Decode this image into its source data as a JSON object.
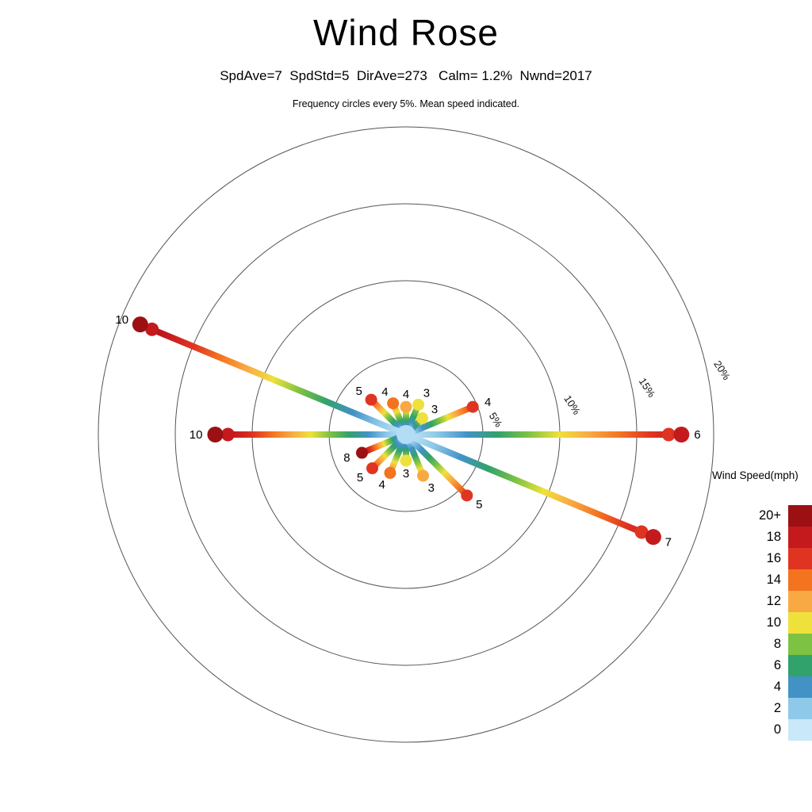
{
  "header": {
    "title": "Wind Rose",
    "subtitle": "SpdAve=7  SpdStd=5  DirAve=273   Calm= 1.2%  Nwnd=2017",
    "caption": "Frequency circles every 5%. Mean speed indicated."
  },
  "legend": {
    "title": "Wind Speed(mph)",
    "entries": [
      {
        "label": "20+",
        "color": "#9c1013"
      },
      {
        "label": "18",
        "color": "#c41a1d"
      },
      {
        "label": "16",
        "color": "#e03422"
      },
      {
        "label": "14",
        "color": "#f4731f"
      },
      {
        "label": "12",
        "color": "#f9a943"
      },
      {
        "label": "10",
        "color": "#efe13b"
      },
      {
        "label": "8",
        "color": "#7dc243"
      },
      {
        "label": "6",
        "color": "#31a26b"
      },
      {
        "label": "4",
        "color": "#4292c6"
      },
      {
        "label": "2",
        "color": "#8ec9e9"
      },
      {
        "label": "0",
        "color": "#c9e8fa"
      }
    ]
  },
  "chart_data": {
    "type": "wind-rose",
    "title": "Wind Rose",
    "stats": {
      "SpdAve": 7,
      "SpdStd": 5,
      "DirAve": 273,
      "Calm_pct": 1.2,
      "Nwnd": 2017
    },
    "speed_unit": "mph",
    "frequency_ring_step_pct": 5,
    "rings": [
      {
        "pct": 5,
        "label": "5%"
      },
      {
        "pct": 10,
        "label": "10%"
      },
      {
        "pct": 15,
        "label": "15%"
      },
      {
        "pct": 20,
        "label": "20%"
      }
    ],
    "calm_color": "#b3dcf5",
    "rays": [
      {
        "dir": "E",
        "angle_deg": 0,
        "freq_pct": 17.9,
        "mean_speed": "6",
        "tip_speed": "18"
      },
      {
        "dir": "ENE",
        "angle_deg": 22.5,
        "freq_pct": 4.7,
        "mean_speed": "4",
        "tip_speed": "16"
      },
      {
        "dir": "NE",
        "angle_deg": 45,
        "freq_pct": 1.5,
        "mean_speed": "3",
        "tip_speed": "10"
      },
      {
        "dir": "NNE",
        "angle_deg": 67.5,
        "freq_pct": 2.1,
        "mean_speed": "3",
        "tip_speed": "10"
      },
      {
        "dir": "N",
        "angle_deg": 90,
        "freq_pct": 1.8,
        "mean_speed": "4",
        "tip_speed": "12"
      },
      {
        "dir": "NNW",
        "angle_deg": 112.5,
        "freq_pct": 2.2,
        "mean_speed": "4",
        "tip_speed": "14"
      },
      {
        "dir": "NW",
        "angle_deg": 135,
        "freq_pct": 3.2,
        "mean_speed": "5",
        "tip_speed": "16"
      },
      {
        "dir": "WNW",
        "angle_deg": 157.5,
        "freq_pct": 18.7,
        "mean_speed": "10",
        "tip_speed": "20+"
      },
      {
        "dir": "W",
        "angle_deg": 180,
        "freq_pct": 12.4,
        "mean_speed": "10",
        "tip_speed": "20+"
      },
      {
        "dir": "WSW",
        "angle_deg": 202.5,
        "freq_pct": 3.1,
        "mean_speed": "8",
        "tip_speed": "20+"
      },
      {
        "dir": "SW",
        "angle_deg": 225,
        "freq_pct": 3.1,
        "mean_speed": "5",
        "tip_speed": "16"
      },
      {
        "dir": "SSW",
        "angle_deg": 247.5,
        "freq_pct": 2.7,
        "mean_speed": "4",
        "tip_speed": "14"
      },
      {
        "dir": "S",
        "angle_deg": 270,
        "freq_pct": 1.7,
        "mean_speed": "3",
        "tip_speed": "10"
      },
      {
        "dir": "SSE",
        "angle_deg": 292.5,
        "freq_pct": 2.9,
        "mean_speed": "3",
        "tip_speed": "12"
      },
      {
        "dir": "SE",
        "angle_deg": 315,
        "freq_pct": 5.6,
        "mean_speed": "5",
        "tip_speed": "16"
      },
      {
        "dir": "ESE",
        "angle_deg": 337.5,
        "freq_pct": 17.4,
        "mean_speed": "7",
        "tip_speed": "18"
      }
    ]
  }
}
